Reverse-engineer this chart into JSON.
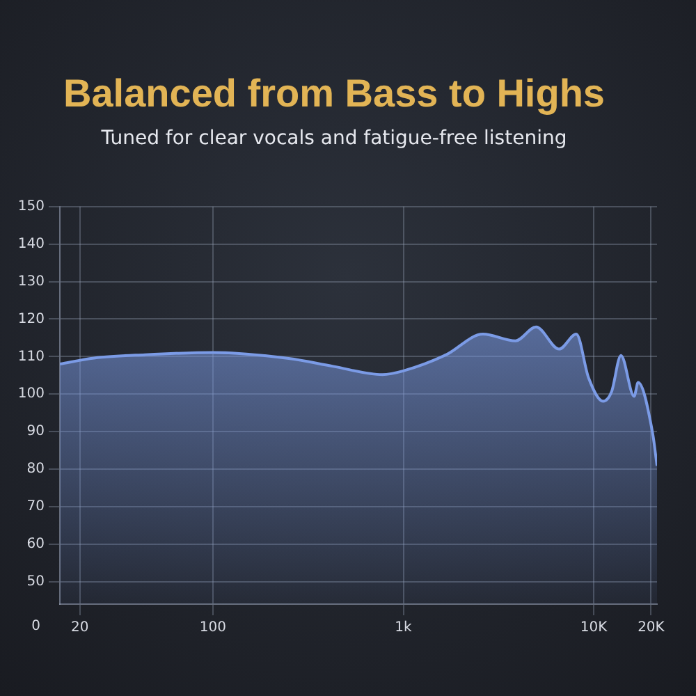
{
  "chart_data": {
    "type": "area",
    "title": "Balanced from Bass to Highs",
    "subtitle": "Tuned for clear vocals and fatigue-free listening",
    "x": [
      15.7,
      23.7,
      44,
      100,
      250,
      428,
      776,
      1000,
      1680,
      2620,
      3880,
      4980,
      6580,
      8100,
      9400,
      11200,
      12400,
      13900,
      16300,
      17100,
      20400,
      21500
    ],
    "series": [
      {
        "color": "#7b9be6",
        "values": [
          108.0,
          109.6,
          110.5,
          111.1,
          109.5,
          107.4,
          105.2,
          106.2,
          110.5,
          116.0,
          114.2,
          117.9,
          112.0,
          116.0,
          104.3,
          98.1,
          100.6,
          110.3,
          99.4,
          103.1,
          89.5,
          80.9
        ]
      }
    ],
    "log": "x",
    "xlim": [
      15.7,
      21500
    ],
    "xticks": [
      20,
      100,
      {
        "value": 1000,
        "label": "1k"
      },
      {
        "value": 10000,
        "label": "10K"
      },
      {
        "value": 20000,
        "label": "20K"
      }
    ],
    "ylim": [
      44,
      150
    ],
    "annotations": [
      "0"
    ],
    "yticks": [
      50,
      60,
      70,
      80,
      90,
      100,
      110,
      120,
      130,
      140,
      150
    ],
    "grid": true,
    "legend": false
  }
}
